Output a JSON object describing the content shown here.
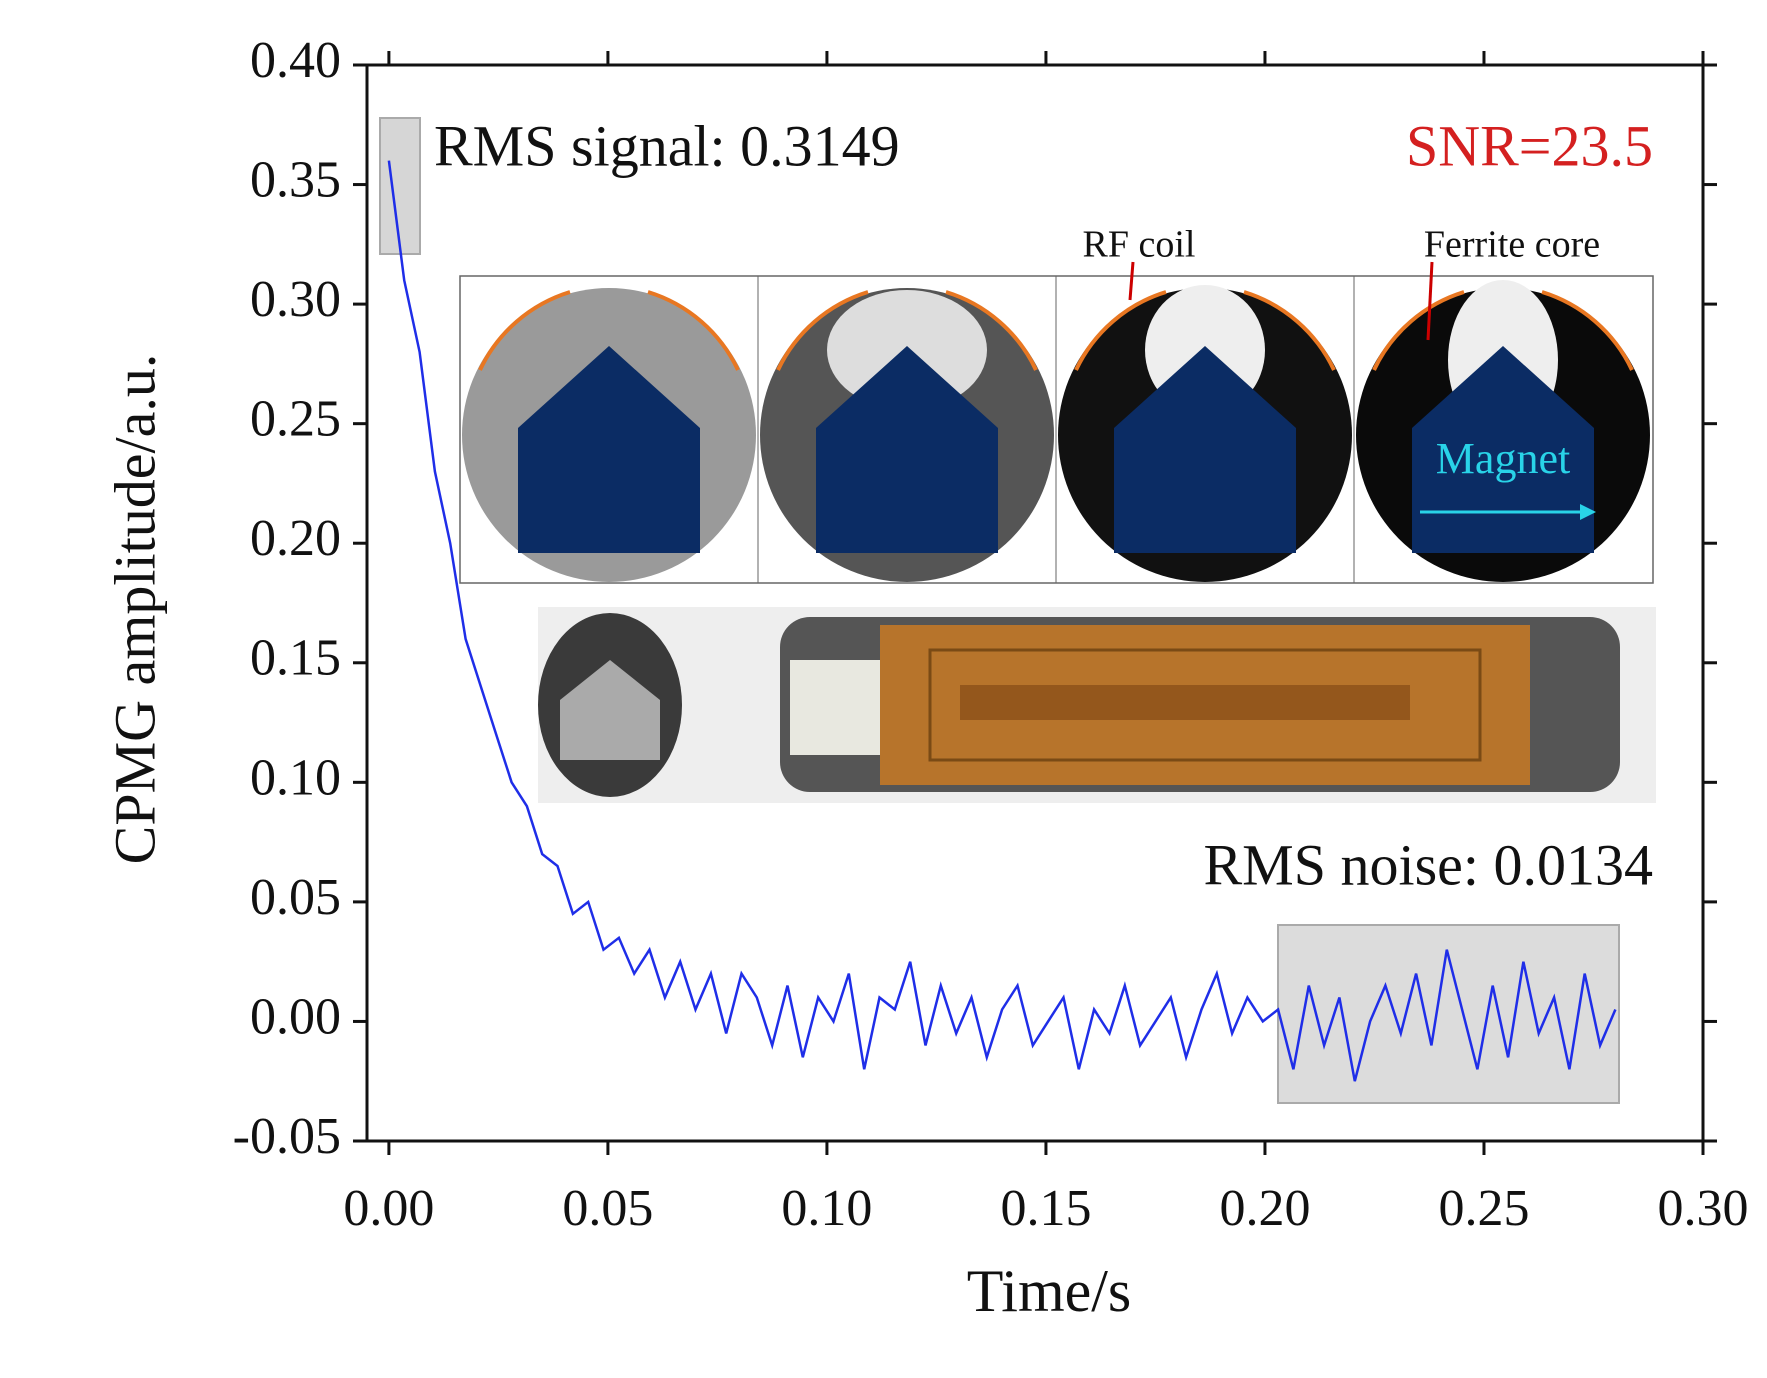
{
  "chart_data": {
    "type": "line",
    "xlabel": "Time/s",
    "ylabel": "CPMG amplitude/a.u.",
    "annotations": {
      "rms_signal": "RMS signal: 0.3149",
      "snr": "SNR=23.5",
      "rms_noise": "RMS noise: 0.0134",
      "rf_coil": "RF coil",
      "ferrite_core": "Ferrite core",
      "magnet": "Magnet"
    },
    "xlim": [
      -0.005,
      0.3
    ],
    "ylim": [
      -0.05,
      0.4
    ],
    "xticks": [
      {
        "value": 0,
        "label": "0.00"
      },
      {
        "value": 0.05,
        "label": "0.05"
      },
      {
        "value": 0.1,
        "label": "0.10"
      },
      {
        "value": 0.15,
        "label": "0.15"
      },
      {
        "value": 0.2,
        "label": "0.20"
      },
      {
        "value": 0.25,
        "label": "0.25"
      },
      {
        "value": 0.3,
        "label": "0.30"
      }
    ],
    "yticks": [
      {
        "value": -0.05,
        "label": "-0.05"
      },
      {
        "value": 0,
        "label": "0.00"
      },
      {
        "value": 0.05,
        "label": "0.05"
      },
      {
        "value": 0.1,
        "label": "0.10"
      },
      {
        "value": 0.15,
        "label": "0.15"
      },
      {
        "value": 0.2,
        "label": "0.20"
      },
      {
        "value": 0.25,
        "label": "0.25"
      },
      {
        "value": 0.3,
        "label": "0.30"
      },
      {
        "value": 0.35,
        "label": "0.35"
      },
      {
        "value": 0.4,
        "label": "0.40"
      }
    ],
    "x": [
      0,
      0.0035,
      0.007,
      0.0105,
      0.014,
      0.0175,
      0.021,
      0.0245,
      0.028,
      0.0315,
      0.035,
      0.0385,
      0.042,
      0.0455,
      0.049,
      0.0525,
      0.056,
      0.0595,
      0.063,
      0.0665,
      0.07,
      0.0735,
      0.077,
      0.0805,
      0.084,
      0.0875,
      0.091,
      0.0945,
      0.098,
      0.1015,
      0.105,
      0.1085,
      0.112,
      0.1155,
      0.119,
      0.1225,
      0.126,
      0.1295,
      0.133,
      0.1365,
      0.14,
      0.1435,
      0.147,
      0.1505,
      0.154,
      0.1575,
      0.161,
      0.1645,
      0.168,
      0.1715,
      0.175,
      0.1785,
      0.182,
      0.1855,
      0.189,
      0.1925,
      0.196,
      0.1995,
      0.203,
      0.2065,
      0.21,
      0.2135,
      0.217,
      0.2205,
      0.224,
      0.2275,
      0.231,
      0.2345,
      0.238,
      0.2415,
      0.245,
      0.2485,
      0.252,
      0.2555,
      0.259,
      0.2625,
      0.266,
      0.2695,
      0.273,
      0.2765,
      0.28
    ],
    "series": [
      {
        "color": "#1f2ee8",
        "values": [
          0.36,
          0.31,
          0.28,
          0.23,
          0.2,
          0.16,
          0.14,
          0.12,
          0.1,
          0.09,
          0.07,
          0.065,
          0.045,
          0.05,
          0.03,
          0.035,
          0.02,
          0.03,
          0.01,
          0.025,
          0.005,
          0.02,
          -0.005,
          0.02,
          0.01,
          -0.01,
          0.015,
          -0.015,
          0.01,
          0.0,
          0.02,
          -0.02,
          0.01,
          0.005,
          0.025,
          -0.01,
          0.015,
          -0.005,
          0.01,
          -0.015,
          0.005,
          0.015,
          -0.01,
          0.0,
          0.01,
          -0.02,
          0.005,
          -0.005,
          0.015,
          -0.01,
          0.0,
          0.01,
          -0.015,
          0.005,
          0.02,
          -0.005,
          0.01,
          0.0,
          0.005,
          -0.02,
          0.015,
          -0.01,
          0.01,
          -0.025,
          0.0,
          0.015,
          -0.005,
          0.02,
          -0.01,
          0.03,
          0.005,
          -0.02,
          0.015,
          -0.015,
          0.025,
          -0.005,
          0.01,
          -0.02,
          0.02,
          -0.01,
          0.005
        ]
      }
    ]
  }
}
